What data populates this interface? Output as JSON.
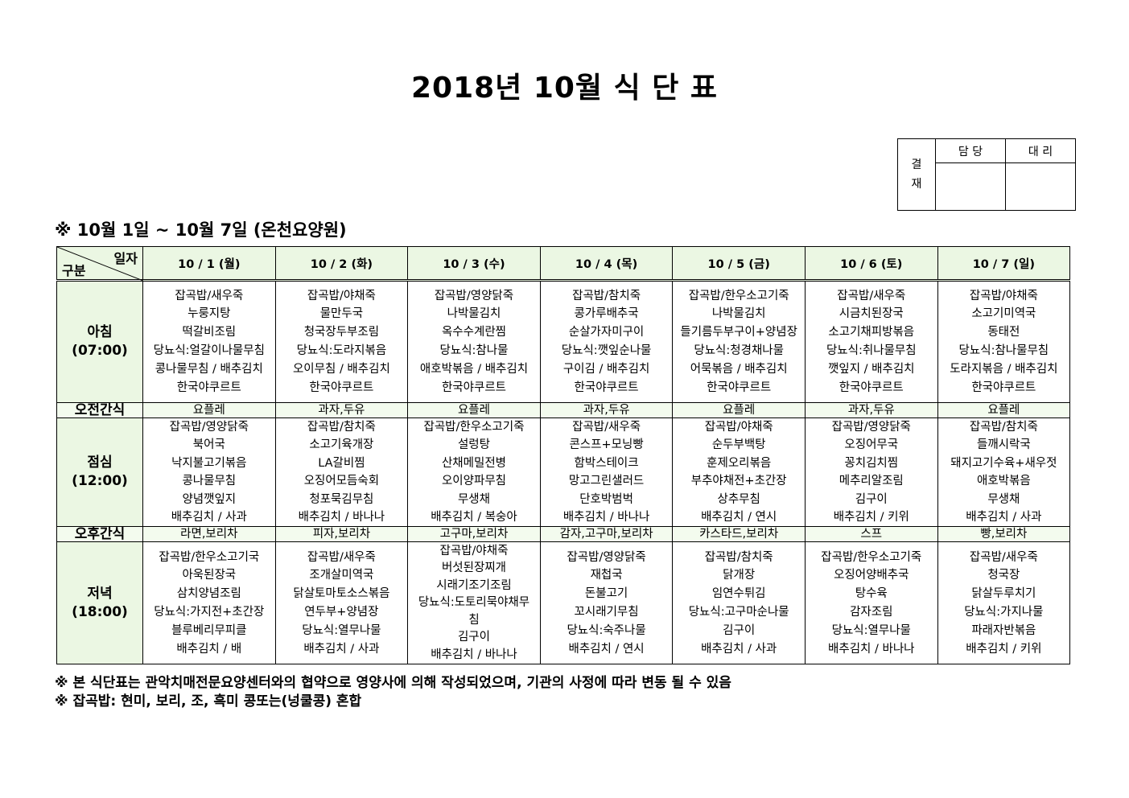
{
  "title": "2018년 10월 식 단 표",
  "approval": {
    "label": "결\n재",
    "cols": [
      "담 당",
      "대 리"
    ]
  },
  "subtitle": "※ 10월 1일 ~ 10월 7일 (온천요양원)",
  "table": {
    "corner_top": "일자",
    "corner_bottom": "구분",
    "days": [
      "10 / 1 (월)",
      "10 / 2 (화)",
      "10 / 3 (수)",
      "10 / 4 (목)",
      "10 / 5 (금)",
      "10 / 6 (토)",
      "10 / 7 (일)"
    ],
    "rows": [
      {
        "label": "아침",
        "time": "(07:00)",
        "cells": [
          [
            "잡곡밥/새우죽",
            "누룽지탕",
            "떡갈비조림",
            "당뇨식:얼갈이나물무침",
            "콩나물무침 / 배추김치",
            "한국야쿠르트"
          ],
          [
            "잡곡밥/야채죽",
            "물만두국",
            "청국장두부조림",
            "당뇨식:도라지볶음",
            "오이무침 / 배추김치",
            "한국야쿠르트"
          ],
          [
            "잡곡밥/영양닭죽",
            "나박물김치",
            "옥수수계란찜",
            "당뇨식:참나물",
            "애호박볶음 / 배추김치",
            "한국야쿠르트"
          ],
          [
            "잡곡밥/참치죽",
            "콩가루배추국",
            "순살가자미구이",
            "당뇨식:깻잎순나물",
            "구이김 / 배추김치",
            "한국야쿠르트"
          ],
          [
            "잡곡밥/한우소고기죽",
            "나박물김치",
            "들기름두부구이+양념장",
            "당뇨식:청경채나물",
            "어묵볶음 / 배추김치",
            "한국야쿠르트"
          ],
          [
            "잡곡밥/새우죽",
            "시금치된장국",
            "소고기채피방볶음",
            "당뇨식:취나물무침",
            "깻잎지 / 배추김치",
            "한국야쿠르트"
          ],
          [
            "잡곡밥/야채죽",
            "소고기미역국",
            "동태전",
            "당뇨식:참나물무침",
            "도라지볶음 / 배추김치",
            "한국야쿠르트"
          ]
        ]
      },
      {
        "label": "오전간식",
        "cells": [
          "요플레",
          "과자,두유",
          "요플레",
          "과자,두유",
          "요플레",
          "과자,두유",
          "요플레"
        ]
      },
      {
        "label": "점심",
        "time": "(12:00)",
        "cells": [
          [
            "잡곡밥/영양닭죽",
            "북어국",
            "낙지불고기볶음",
            "콩나물무침",
            "양념깻잎지",
            "배추김치 / 사과"
          ],
          [
            "잡곡밥/참치죽",
            "소고기육개장",
            "LA갈비찜",
            "오징어모듬숙회",
            "청포묵김무침",
            "배추김치 / 바나나"
          ],
          [
            "잡곡밥/한우소고기죽",
            "설렁탕",
            "산채메밀전병",
            "오이양파무침",
            "무생채",
            "배추김치 / 복숭아"
          ],
          [
            "잡곡밥/새우죽",
            "콘스프+모닝빵",
            "함박스테이크",
            "망고그린샐러드",
            "단호박범벅",
            "배추김치 / 바나나"
          ],
          [
            "잡곡밥/야채죽",
            "순두부백탕",
            "훈제오리볶음",
            "부추야채전+초간장",
            "상추무침",
            "배추김치 / 연시"
          ],
          [
            "잡곡밥/영양닭죽",
            "오징어무국",
            "꽁치김치찜",
            "메추리알조림",
            "김구이",
            "배추김치 / 키위"
          ],
          [
            "잡곡밥/참치죽",
            "들깨시락국",
            "돼지고기수육+새우젓",
            "애호박볶음",
            "무생채",
            "배추김치 / 사과"
          ]
        ]
      },
      {
        "label": "오후간식",
        "cells": [
          "라면,보리차",
          "피자,보리차",
          "고구마,보리차",
          "감자,고구마,보리차",
          "카스타드,보리차",
          "스프",
          "빵,보리차"
        ]
      },
      {
        "label": "저녁",
        "time": "(18:00)",
        "cells": [
          [
            "잡곡밥/한우소고기국",
            "아욱된장국",
            "삼치양념조림",
            "당뇨식:가지전+초간장",
            "블루베리무피클",
            "배추김치 / 배"
          ],
          [
            "잡곡밥/새우죽",
            "조개살미역국",
            "닭살토마토소스볶음",
            "연두부+양념장",
            "당뇨식:열무나물",
            "배추김치 / 사과"
          ],
          [
            "잡곡밥/야채죽",
            "버섯된장찌개",
            "시래기조기조림",
            "당뇨식:도토리묵야채무",
            "침",
            "김구이",
            "배추김치 / 바나나"
          ],
          [
            "잡곡밥/영양닭죽",
            "재첩국",
            "돈불고기",
            "꼬시래기무침",
            "당뇨식:숙주나물",
            "배추김치 / 연시"
          ],
          [
            "잡곡밥/참치죽",
            "닭개장",
            "임연수튀김",
            "당뇨식:고구마순나물",
            "김구이",
            "배추김치 / 사과"
          ],
          [
            "잡곡밥/한우소고기죽",
            "오징어양배추국",
            "탕수육",
            "감자조림",
            "당뇨식:열무나물",
            "배추김치 / 바나나"
          ],
          [
            "잡곡밥/새우죽",
            "청국장",
            "닭살두루치기",
            "당뇨식:가지나물",
            "파래자반볶음",
            "배추김치 / 키위"
          ]
        ]
      }
    ]
  },
  "footnotes": [
    "※ 본 식단표는 관악치매전문요양센터와의 협약으로 영양사에 의해 작성되었으며, 기관의 사정에 따라 변동 될 수 있음",
    "※ 잡곡밥: 현미, 보리, 조, 흑미 콩또는(넝쿨콩) 혼합"
  ],
  "colors": {
    "header_bg": "#ebf7e3",
    "snack_bg": "#f3fbee"
  }
}
